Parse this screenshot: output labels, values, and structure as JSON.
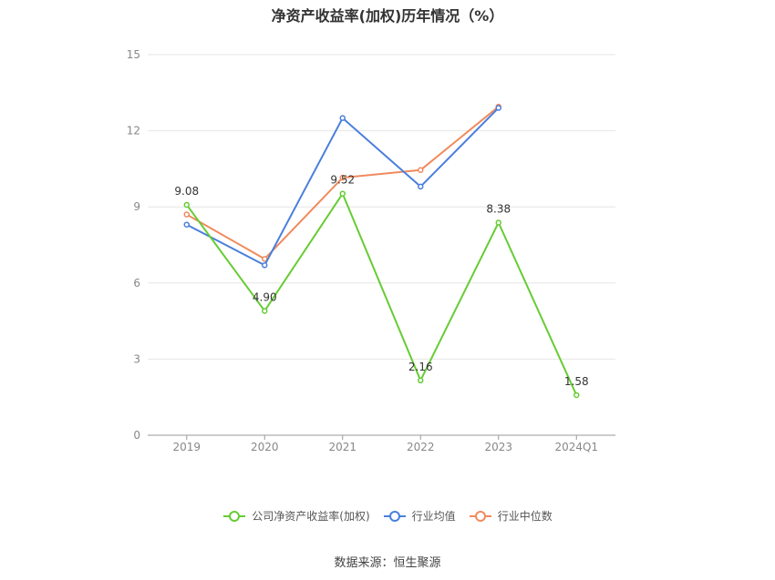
{
  "chart_data": {
    "type": "line",
    "title": "净资产收益率(加权)历年情况（%）",
    "categories": [
      "2019",
      "2020",
      "2021",
      "2022",
      "2023",
      "2024Q1"
    ],
    "ylim": [
      0,
      15
    ],
    "yticks": [
      0,
      3,
      6,
      9,
      12,
      15
    ],
    "grid": true,
    "legend_position": "bottom",
    "series": [
      {
        "name": "公司净资产收益率(加权)",
        "color": "#66cc33",
        "values": [
          9.08,
          4.9,
          9.52,
          2.16,
          8.38,
          1.58
        ],
        "labels": [
          "9.08",
          "4.90",
          "9.52",
          "2.16",
          "8.38",
          "1.58"
        ]
      },
      {
        "name": "行业均值",
        "color": "#4a7fdc",
        "values": [
          8.3,
          6.7,
          12.5,
          9.8,
          12.9,
          null
        ]
      },
      {
        "name": "行业中位数",
        "color": "#f08a5d",
        "values": [
          8.7,
          6.95,
          10.15,
          10.45,
          12.95,
          null
        ]
      }
    ]
  },
  "footer": {
    "source": "数据来源：恒生聚源"
  }
}
